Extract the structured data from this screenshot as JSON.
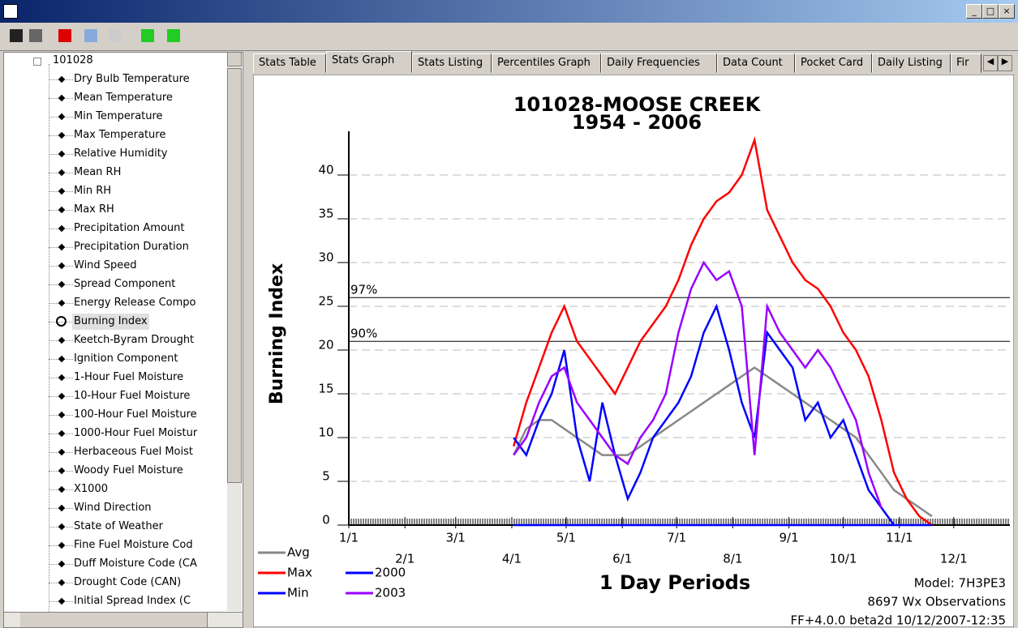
{
  "tree": {
    "root": "101028",
    "items": [
      "Dry Bulb Temperature",
      "Mean Temperature",
      "Min Temperature",
      "Max Temperature",
      "Relative Humidity",
      "Mean RH",
      "Min RH",
      "Max RH",
      "Precipitation Amount",
      "Precipitation Duration",
      "Wind Speed",
      "Spread Component",
      "Energy Release Compo",
      "Burning Index",
      "Keetch-Byram Drought",
      "Ignition Component",
      "1-Hour Fuel Moisture",
      "10-Hour Fuel Moisture",
      "100-Hour Fuel Moisture",
      "1000-Hour Fuel Moistur",
      "Herbaceous Fuel Moist",
      "Woody Fuel Moisture",
      "X1000",
      "Wind Direction",
      "State of Weather",
      "Fine Fuel Moisture Cod",
      "Duff Moisture Code (CA",
      "Drought Code (CAN)",
      "Initial Spread Index (C"
    ]
  },
  "tabs": [
    "Stats Table",
    "Stats Graph",
    "Stats Listing",
    "Percentiles Graph",
    "Daily Frequencies",
    "Data Count",
    "Pocket Card",
    "Daily Listing",
    "Fir"
  ],
  "chart_data": {
    "type": "line",
    "title": "101028-MOOSE CREEK",
    "subtitle": "1954 - 2006",
    "x_label": "1 Day Periods",
    "y_label": "Burning Index",
    "footer": [
      "Model: 7H3PE3",
      "8697 Wx Observations",
      "FF+4.0.0 beta2d 10/12/2007-12:35"
    ],
    "x": [
      92,
      99,
      106,
      113,
      120,
      127,
      134,
      141,
      148,
      155,
      162,
      169,
      176,
      183,
      190,
      197,
      204,
      211,
      218,
      225,
      232,
      239,
      246,
      253,
      260,
      267,
      274,
      281,
      288,
      295,
      302,
      309,
      316,
      323
    ],
    "series": [
      {
        "name": "Avg",
        "color": "#888888",
        "values": [
          8,
          11,
          12,
          12,
          11,
          10,
          9,
          8,
          8,
          8,
          9,
          10,
          11,
          12,
          13,
          14,
          15,
          16,
          17,
          18,
          17,
          16,
          15,
          14,
          13,
          12,
          11,
          10,
          8,
          6,
          4,
          3,
          2,
          1
        ]
      },
      {
        "name": "Max",
        "color": "#ff0000",
        "values": [
          9,
          14,
          18,
          22,
          25,
          21,
          19,
          17,
          15,
          18,
          21,
          23,
          25,
          28,
          32,
          35,
          37,
          38,
          40,
          44,
          36,
          33,
          30,
          28,
          27,
          25,
          22,
          20,
          17,
          12,
          6,
          3,
          1,
          0
        ]
      },
      {
        "name": "Min",
        "color": "#0000ff",
        "values": [
          0,
          0,
          0,
          0,
          0,
          0,
          0,
          0,
          0,
          0,
          0,
          0,
          0,
          0,
          0,
          0,
          0,
          0,
          0,
          0,
          0,
          0,
          0,
          0,
          0,
          0,
          0,
          0,
          0,
          0,
          0,
          0,
          0,
          0
        ]
      },
      {
        "name": "2000",
        "color": "#0000ff",
        "values": [
          10,
          8,
          12,
          15,
          20,
          10,
          5,
          14,
          8,
          3,
          6,
          10,
          12,
          14,
          17,
          22,
          25,
          20,
          14,
          10,
          22,
          20,
          18,
          12,
          14,
          10,
          12,
          8,
          4,
          2,
          0,
          null,
          null,
          null
        ]
      },
      {
        "name": "2003",
        "color": "#9900ff",
        "values": [
          8,
          10,
          14,
          17,
          18,
          14,
          12,
          10,
          8,
          7,
          10,
          12,
          15,
          22,
          27,
          30,
          28,
          29,
          25,
          8,
          25,
          22,
          20,
          18,
          20,
          18,
          15,
          12,
          6,
          2,
          null,
          null,
          null,
          null
        ]
      }
    ],
    "reference_lines": [
      {
        "label": "97%",
        "value": 26
      },
      {
        "label": "90%",
        "value": 21
      }
    ],
    "xlim": [
      1,
      366
    ],
    "xticks": [
      {
        "value": 1,
        "label": "1/1"
      },
      {
        "value": 32,
        "label": "2/1"
      },
      {
        "value": 60,
        "label": "3/1"
      },
      {
        "value": 91,
        "label": "4/1"
      },
      {
        "value": 121,
        "label": "5/1"
      },
      {
        "value": 152,
        "label": "6/1"
      },
      {
        "value": 182,
        "label": "7/1"
      },
      {
        "value": 213,
        "label": "8/1"
      },
      {
        "value": 244,
        "label": "9/1"
      },
      {
        "value": 274,
        "label": "10/1"
      },
      {
        "value": 305,
        "label": "11/1"
      },
      {
        "value": 335,
        "label": "12/1"
      }
    ],
    "ylim": [
      0,
      45
    ],
    "yticks": [
      0,
      5,
      10,
      15,
      20,
      25,
      30,
      35,
      40
    ],
    "grid": true
  }
}
